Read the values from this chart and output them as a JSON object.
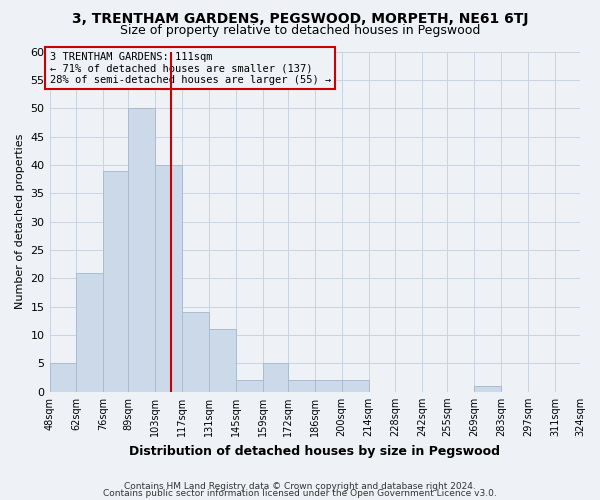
{
  "title": "3, TRENTHAM GARDENS, PEGSWOOD, MORPETH, NE61 6TJ",
  "subtitle": "Size of property relative to detached houses in Pegswood",
  "xlabel": "Distribution of detached houses by size in Pegswood",
  "ylabel": "Number of detached properties",
  "bar_color": "#ccd9e8",
  "bar_edgecolor": "#aabcce",
  "grid_color": "#c8d4e0",
  "vline_x": 111,
  "vline_color": "#cc0000",
  "annotation_title": "3 TRENTHAM GARDENS: 111sqm",
  "annotation_line1": "← 71% of detached houses are smaller (137)",
  "annotation_line2": "28% of semi-detached houses are larger (55) →",
  "annotation_box_edgecolor": "#cc0000",
  "bin_edges": [
    48,
    62,
    76,
    89,
    103,
    117,
    131,
    145,
    159,
    172,
    186,
    200,
    214,
    228,
    242,
    255,
    269,
    283,
    297,
    311,
    324
  ],
  "bin_counts": [
    5,
    21,
    39,
    50,
    40,
    14,
    11,
    2,
    5,
    2,
    2,
    2,
    0,
    0,
    0,
    0,
    1,
    0,
    0,
    0
  ],
  "tick_labels": [
    "48sqm",
    "62sqm",
    "76sqm",
    "89sqm",
    "103sqm",
    "117sqm",
    "131sqm",
    "145sqm",
    "159sqm",
    "172sqm",
    "186sqm",
    "200sqm",
    "214sqm",
    "228sqm",
    "242sqm",
    "255sqm",
    "269sqm",
    "283sqm",
    "297sqm",
    "311sqm",
    "324sqm"
  ],
  "ylim": [
    0,
    60
  ],
  "yticks": [
    0,
    5,
    10,
    15,
    20,
    25,
    30,
    35,
    40,
    45,
    50,
    55,
    60
  ],
  "footer1": "Contains HM Land Registry data © Crown copyright and database right 2024.",
  "footer2": "Contains public sector information licensed under the Open Government Licence v3.0.",
  "bg_color": "#eef2f7"
}
